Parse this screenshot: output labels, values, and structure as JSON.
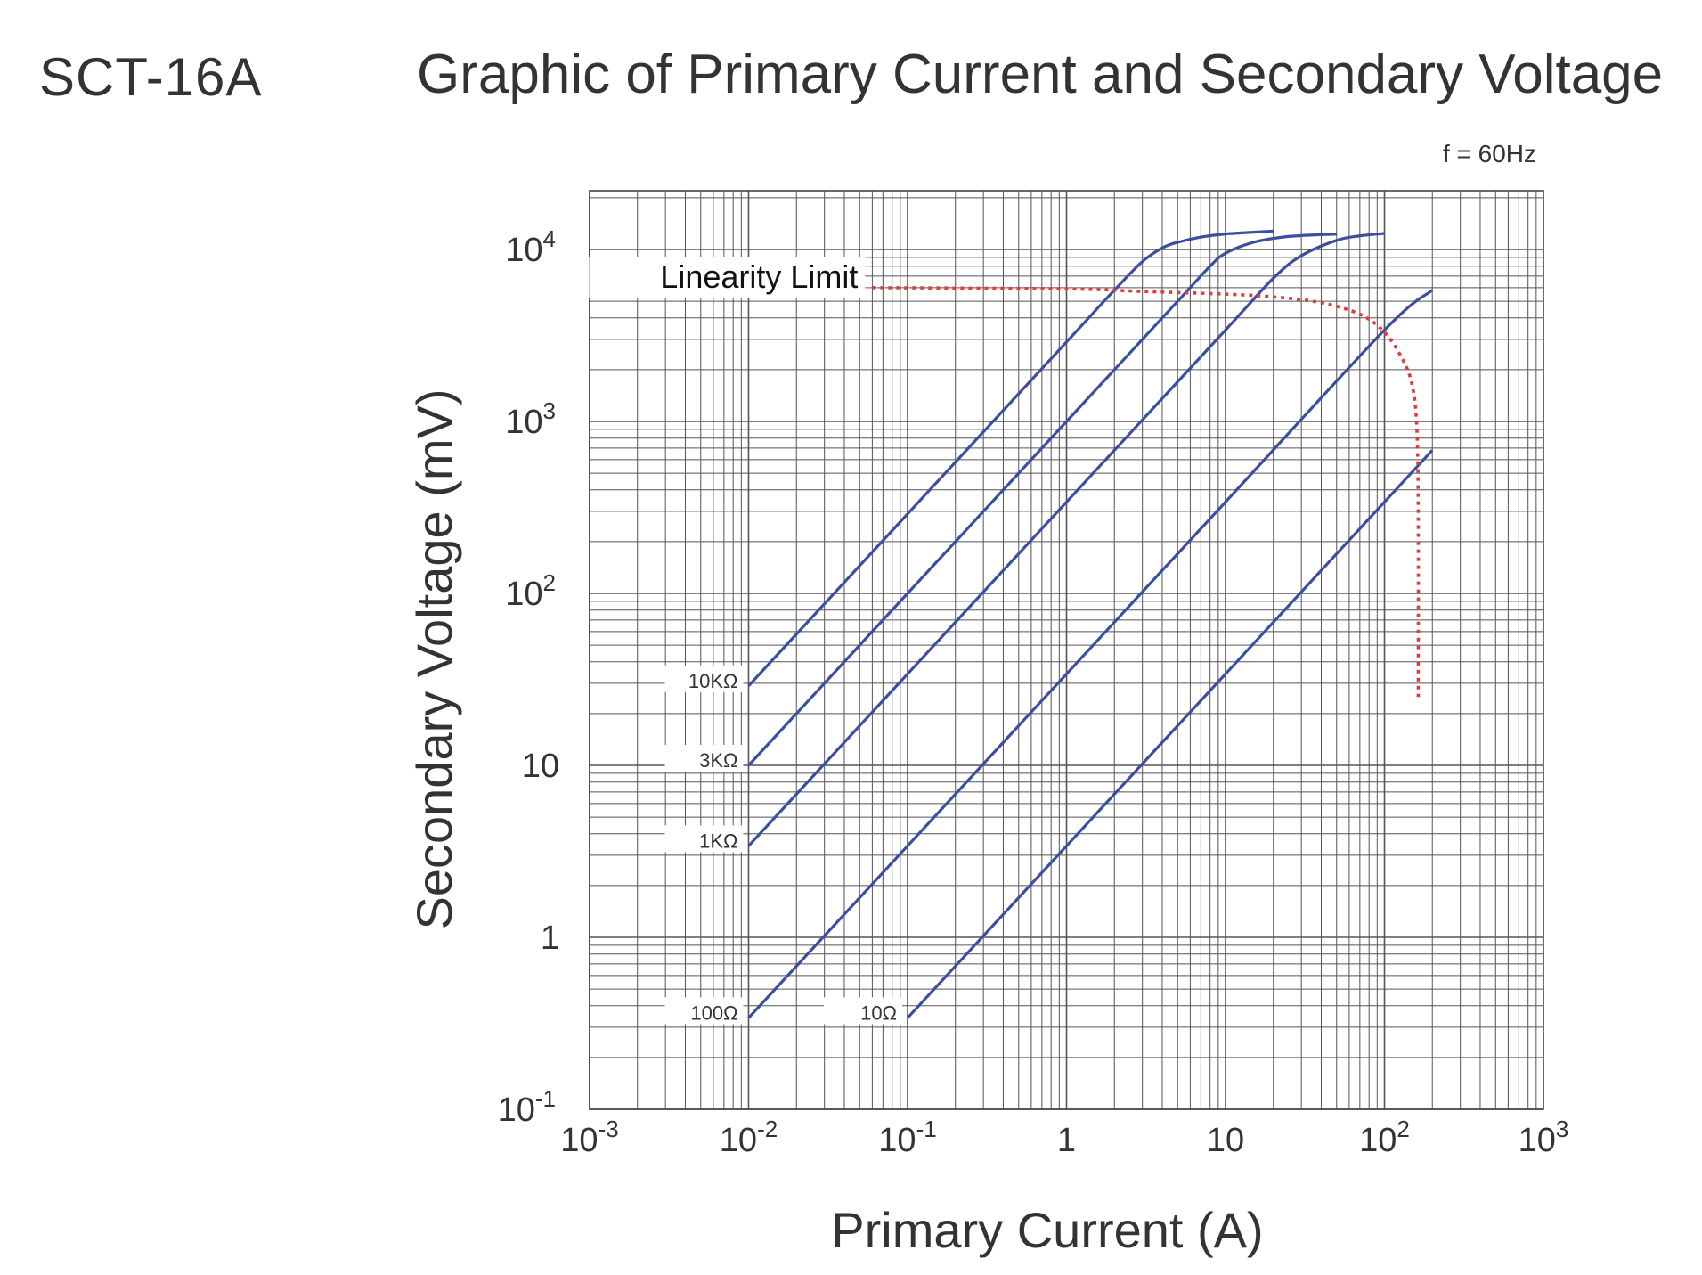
{
  "header": {
    "model": "SCT-16A",
    "title": "Graphic of Primary Current and Secondary Voltage"
  },
  "chart_data": {
    "type": "line",
    "title": "Graphic of Primary Current and Secondary Voltage",
    "note": "f = 60Hz",
    "xlabel": "Primary Current (A)",
    "ylabel": "Secondary Voltage (mV)",
    "xscale": "log",
    "yscale": "log",
    "xlim": [
      0.001,
      1000
    ],
    "ylim": [
      0.1,
      20000
    ],
    "grid": true,
    "x_ticks": [
      {
        "value": 0.001,
        "base": "10",
        "exp": "-3"
      },
      {
        "value": 0.01,
        "base": "10",
        "exp": "-2"
      },
      {
        "value": 0.1,
        "base": "10",
        "exp": "-1"
      },
      {
        "value": 1,
        "base": "1",
        "exp": ""
      },
      {
        "value": 10,
        "base": "10",
        "exp": ""
      },
      {
        "value": 100,
        "base": "10",
        "exp": "2"
      },
      {
        "value": 1000,
        "base": "10",
        "exp": "3"
      }
    ],
    "y_ticks": [
      {
        "value": 0.1,
        "base": "10",
        "exp": "-1"
      },
      {
        "value": 1,
        "base": "1",
        "exp": ""
      },
      {
        "value": 10,
        "base": "10",
        "exp": ""
      },
      {
        "value": 100,
        "base": "10",
        "exp": "2"
      },
      {
        "value": 1000,
        "base": "10",
        "exp": "3"
      },
      {
        "value": 10000,
        "base": "10",
        "exp": "4"
      }
    ],
    "series": [
      {
        "name": "10KΩ",
        "points": [
          [
            0.01,
            29
          ],
          [
            0.1,
            290
          ],
          [
            1,
            2900
          ],
          [
            2,
            5800
          ],
          [
            3,
            8500
          ],
          [
            4,
            10200
          ],
          [
            5,
            11000
          ],
          [
            7,
            11800
          ],
          [
            10,
            12300
          ],
          [
            20,
            12800
          ]
        ]
      },
      {
        "name": "3KΩ",
        "points": [
          [
            0.01,
            10
          ],
          [
            0.1,
            100
          ],
          [
            1,
            1000
          ],
          [
            5,
            5000
          ],
          [
            8,
            8000
          ],
          [
            10,
            9500
          ],
          [
            15,
            11000
          ],
          [
            25,
            11900
          ],
          [
            50,
            12300
          ]
        ]
      },
      {
        "name": "1KΩ",
        "points": [
          [
            0.01,
            3.4
          ],
          [
            0.1,
            34
          ],
          [
            1,
            340
          ],
          [
            10,
            3400
          ],
          [
            20,
            6800
          ],
          [
            30,
            9200
          ],
          [
            50,
            11300
          ],
          [
            70,
            12000
          ],
          [
            100,
            12400
          ]
        ]
      },
      {
        "name": "100Ω",
        "points": [
          [
            0.01,
            0.34
          ],
          [
            0.1,
            3.4
          ],
          [
            1,
            34
          ],
          [
            10,
            340
          ],
          [
            100,
            3400
          ],
          [
            200,
            5800
          ]
        ]
      },
      {
        "name": "10Ω",
        "points": [
          [
            0.1,
            0.34
          ],
          [
            1,
            3.4
          ],
          [
            10,
            34
          ],
          [
            100,
            340
          ],
          [
            200,
            680
          ]
        ]
      }
    ],
    "linearity_limit": {
      "name": "Linearity Limit",
      "points": [
        [
          0.06,
          6000
        ],
        [
          1,
          5900
        ],
        [
          3,
          5700
        ],
        [
          10,
          5500
        ],
        [
          20,
          5300
        ],
        [
          40,
          4900
        ],
        [
          70,
          4200
        ],
        [
          100,
          3300
        ],
        [
          130,
          2300
        ],
        [
          150,
          1600
        ],
        [
          160,
          900
        ],
        [
          163,
          300
        ],
        [
          163,
          25
        ]
      ]
    }
  }
}
